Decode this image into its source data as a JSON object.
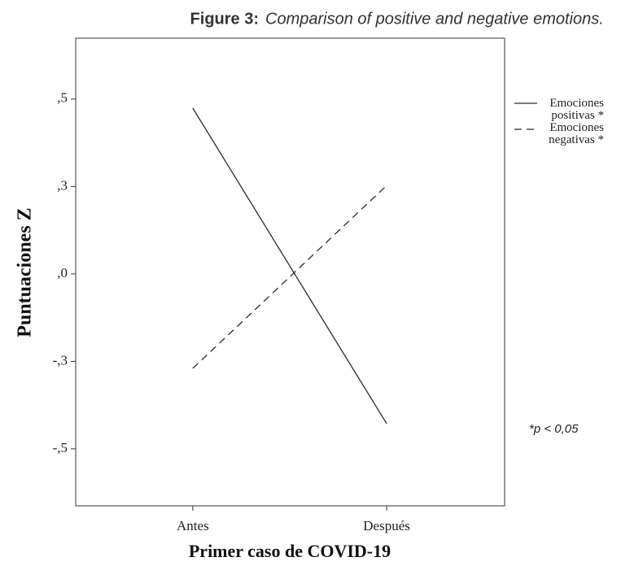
{
  "chart_data": {
    "type": "line",
    "figure_label": "Figure 3:",
    "title": "Comparison of positive and negative emotions.",
    "x_label": "Primer caso de COVID-19",
    "y_label": "Puntuaciones Z",
    "categories": [
      "Antes",
      "Después"
    ],
    "series": [
      {
        "name": "Emociones positivas *",
        "color": "#2b2b2b",
        "dash": "solid",
        "values": [
          0.474,
          -0.428
        ]
      },
      {
        "name": "Emociones negativas *",
        "color": "#2b2b2b",
        "dash": "dashed",
        "values": [
          -0.27,
          0.253
        ]
      }
    ],
    "ylim": [
      -0.663,
      0.674
    ],
    "yticks": [
      {
        "value": 0.5,
        "label": ",5"
      },
      {
        "value": 0.25,
        "label": ",3"
      },
      {
        "value": 0,
        "label": ",0"
      },
      {
        "value": -0.25,
        "label": "-,3"
      },
      {
        "value": -0.5,
        "label": "-,5"
      }
    ],
    "annotation": "*p < 0,05",
    "grid": false,
    "legend": "right"
  }
}
